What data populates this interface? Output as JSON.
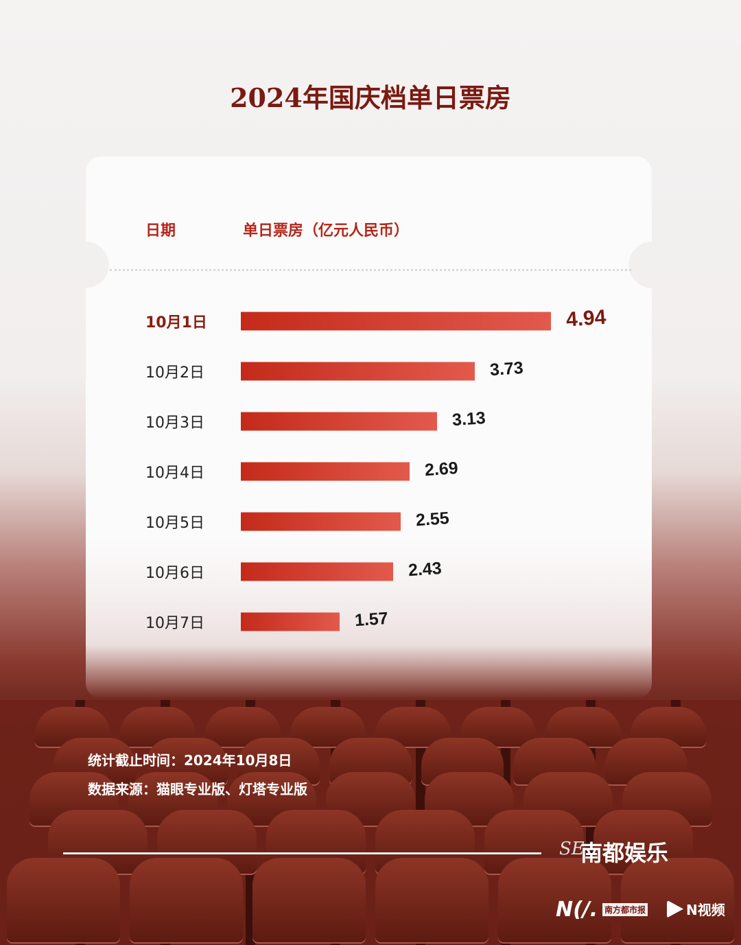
{
  "title": "2024年国庆档单日票房",
  "header": {
    "date_col": "日期",
    "value_col": "单日票房（亿元人民币）"
  },
  "chart_data": {
    "type": "bar",
    "orientation": "horizontal",
    "title": "2024年国庆档单日票房",
    "categories": [
      "10月1日",
      "10月2日",
      "10月3日",
      "10月4日",
      "10月5日",
      "10月6日",
      "10月7日"
    ],
    "values": [
      4.94,
      3.73,
      3.13,
      2.69,
      2.55,
      2.43,
      1.57
    ],
    "labels": [
      "4.94",
      "3.73",
      "3.13",
      "2.69",
      "2.55",
      "2.43",
      "1.57"
    ],
    "ylabel": "单日票房（亿元人民币）",
    "xlabel": "日期",
    "xlim": [
      0,
      4.94
    ],
    "grid": false,
    "bar_color": "#d2392a",
    "highlight_color": "#7a1a12"
  },
  "notes": {
    "cutoff": "统计截止时间：2024年10月8日",
    "source": "数据来源：猫眼专业版、灯塔专业版"
  },
  "logos": {
    "brand": "南都娱乐",
    "se": "SE",
    "nd": "N(/.",
    "nd_name": "南方都市报",
    "nvideo": "N视频"
  },
  "colors": {
    "title": "#7a1a12",
    "accent": "#b5261a"
  }
}
